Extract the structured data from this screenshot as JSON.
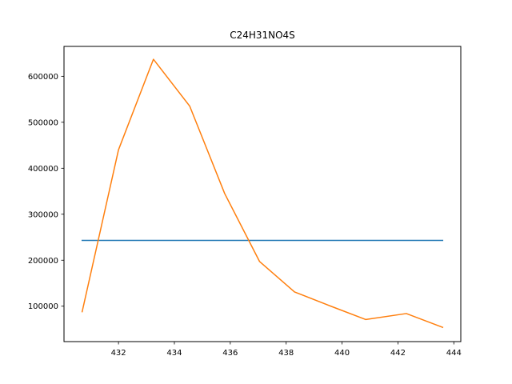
{
  "chart_data": {
    "type": "line",
    "title": "C24H31NO4S",
    "xlabel": "",
    "ylabel": "",
    "xlim": [
      430.05,
      444.25
    ],
    "ylim": [
      23000,
      665000
    ],
    "x_ticks": [
      432,
      434,
      436,
      438,
      440,
      442,
      444
    ],
    "y_ticks": [
      100000,
      200000,
      300000,
      400000,
      500000,
      600000
    ],
    "grid": false,
    "legend": "none",
    "series": [
      {
        "color": "#1f77b4",
        "x": [
          430.7,
          443.6
        ],
        "y": [
          243000,
          243000
        ]
      },
      {
        "color": "#ff7f0e",
        "x": [
          430.7,
          432.0,
          433.25,
          434.55,
          435.8,
          437.05,
          438.3,
          439.6,
          440.85,
          442.3,
          443.6
        ],
        "y": [
          88000,
          440000,
          637000,
          535000,
          345000,
          197000,
          131000,
          100000,
          71000,
          84000,
          54000
        ]
      }
    ]
  }
}
